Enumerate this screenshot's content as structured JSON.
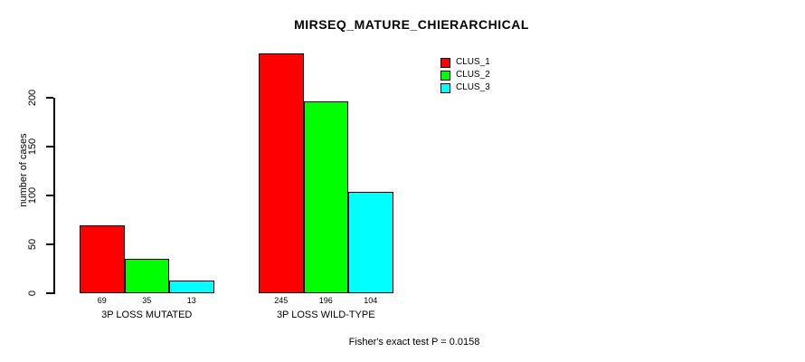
{
  "title": "MIRSEQ_MATURE_CHIERARCHICAL",
  "chart_data": {
    "type": "bar",
    "title": "MIRSEQ_MATURE_CHIERARCHICAL",
    "xlabel": "",
    "ylabel": "number of cases",
    "ylim": [
      0,
      245
    ],
    "yticks": [
      0,
      50,
      100,
      150,
      200
    ],
    "grid": false,
    "legend_position": "top-right-inside",
    "categories": [
      "3P LOSS MUTATED",
      "3P LOSS WILD-TYPE"
    ],
    "series": [
      {
        "name": "CLUS_1",
        "color": "#FF0000",
        "values": [
          69,
          245
        ]
      },
      {
        "name": "CLUS_2",
        "color": "#00FF00",
        "values": [
          35,
          196
        ]
      },
      {
        "name": "CLUS_3",
        "color": "#00FFFF",
        "values": [
          13,
          104
        ]
      }
    ],
    "bar_value_labels_shown": true
  },
  "footer": {
    "text": "Fisher's exact test P = 0.0158"
  },
  "colors": {
    "background": "#FFFFFF",
    "axis": "#000000",
    "text": "#000000"
  }
}
